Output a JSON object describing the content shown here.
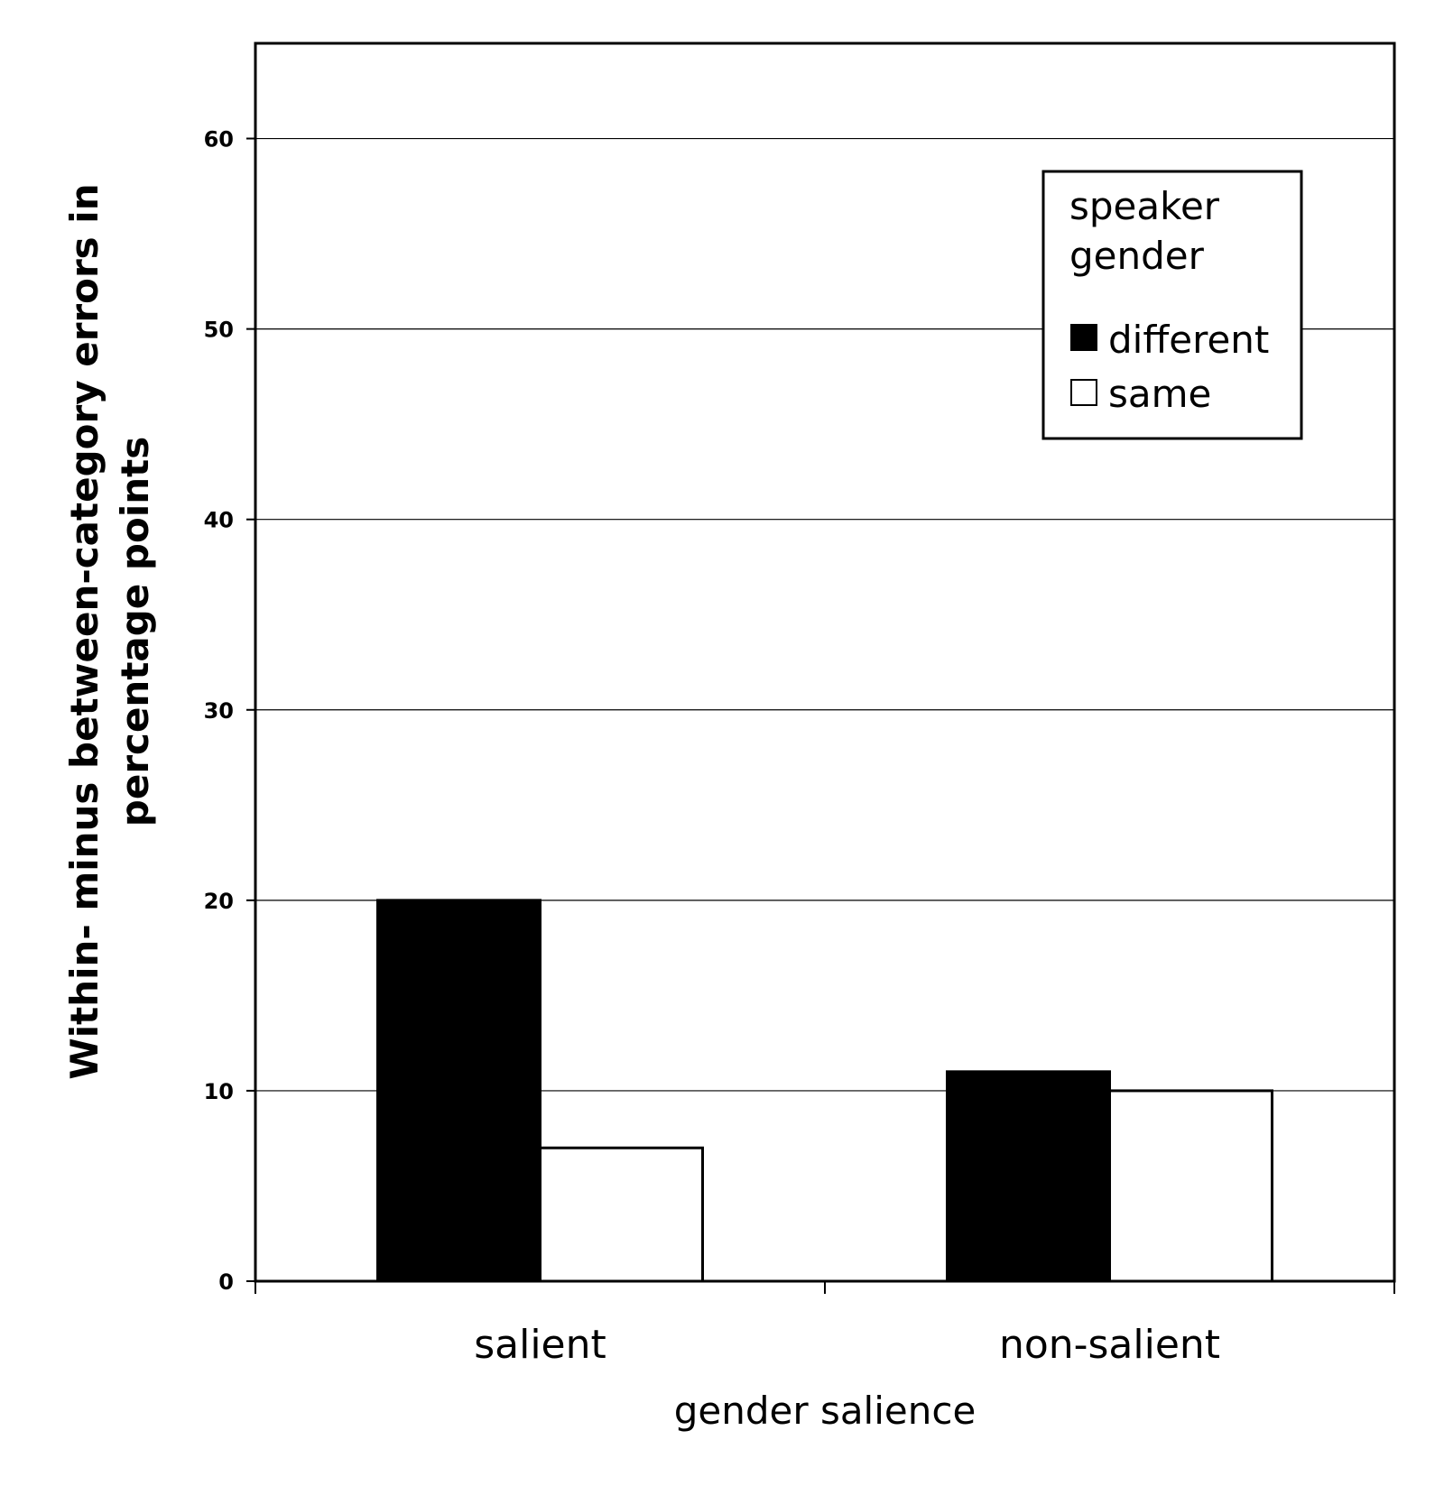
{
  "chart_data": {
    "type": "bar",
    "categories": [
      "salient",
      "non-salient"
    ],
    "series": [
      {
        "name": "different",
        "values": [
          20,
          11
        ],
        "color": "#000000"
      },
      {
        "name": "same",
        "values": [
          7,
          10
        ],
        "color": "#ffffff"
      }
    ],
    "title": "",
    "xlabel": "gender salience",
    "ylabel_lines": [
      "Within- minus between-category errors in",
      "percentage points"
    ],
    "ylim": [
      0,
      65
    ],
    "yticks": [
      0,
      10,
      20,
      30,
      40,
      50,
      60
    ],
    "grid": true,
    "legend": {
      "title_lines": [
        "speaker",
        "gender"
      ],
      "placement": "top-right"
    }
  }
}
